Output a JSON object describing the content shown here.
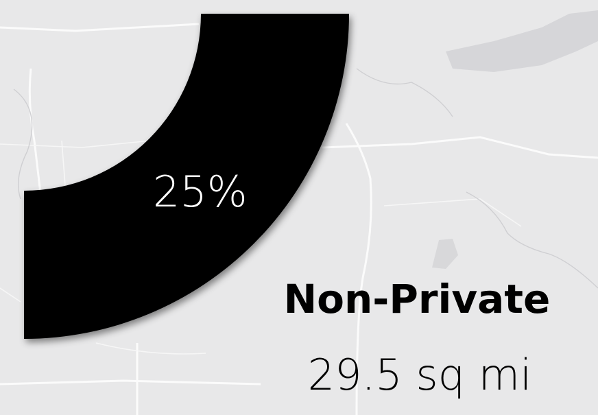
{
  "chart_data": {
    "type": "donut",
    "categories": [
      "Non-Private"
    ],
    "values": [
      25
    ],
    "value_labels": [
      "25%"
    ],
    "color": "#000000",
    "annotations": [
      "29.5 sq mi"
    ]
  }
}
